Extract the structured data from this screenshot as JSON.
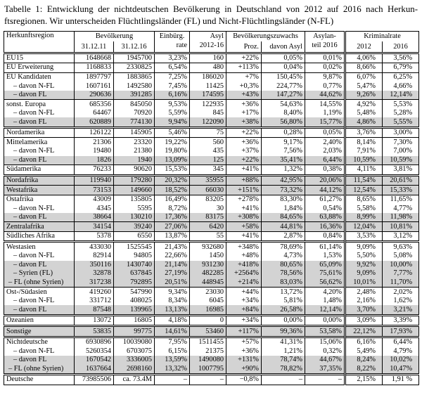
{
  "caption": {
    "line1": "Tabelle 1: Entwicklung der nichtdeutschen Bevölkerung in Deutschland von 2012 auf 2016 nach Herkun-",
    "line2": "ftsregionen. Wir unterscheiden Flüchtlingsländer (FL) und Nicht-Flüchtlingsländer (N-FL)"
  },
  "colors": {
    "shaded_row": "#d3d3d3",
    "border": "#000000",
    "background": "#ffffff"
  },
  "header": {
    "region": "Herkunftsregion",
    "group_bevoelkerung": "Bevölkerung",
    "pop_2011": "31.12.11",
    "pop_2016": "31.12.16",
    "einbuerg_line1": "Einbürg.",
    "einbuerg_line2": "rate",
    "asyl_line1": "Asyl",
    "asyl_line2": "2012-16",
    "group_zuwachs": "Bevölkerungszuwachs",
    "proz": "Proz.",
    "davon_asyl": "davon Asyl",
    "asylanteil_line1": "Asylan-",
    "asylanteil_line2": "teil 2016",
    "group_kriminalrate": "Kriminalrate",
    "krim_2012": "2012",
    "krim_2016": "2016"
  },
  "rows": [
    {
      "region": "EU15",
      "indent": 0,
      "shaded": false,
      "border": "double",
      "values": [
        "1648668",
        "1945700",
        "3,23%",
        "160",
        "+22%",
        "0,05%",
        "0,01%",
        "4,06%",
        "3,56%"
      ]
    },
    {
      "region": "EU Erweiterung",
      "indent": 0,
      "shaded": false,
      "border": "single",
      "values": [
        "1168833",
        "2330825",
        "6,54%",
        "480",
        "+113%",
        "0,04%",
        "0,02%",
        "8,66%",
        "6,79%"
      ]
    },
    {
      "region": "EU Kandidaten",
      "indent": 0,
      "shaded": false,
      "border": "single",
      "values": [
        "1897797",
        "1883865",
        "7,25%",
        "186020",
        "+7%",
        "150,45%",
        "9,87%",
        "6,07%",
        "6,25%"
      ]
    },
    {
      "region": "– davon N-FL",
      "indent": 10,
      "shaded": false,
      "border": "none",
      "values": [
        "1607161",
        "1492580",
        "7,45%",
        "11425",
        "+0,3%",
        "224,77%",
        "0,77%",
        "5,47%",
        "4,66%"
      ]
    },
    {
      "region": "– davon FL",
      "indent": 10,
      "shaded": true,
      "border": "none",
      "values": [
        "290636",
        "391285",
        "6,16%",
        "174595",
        "+43%",
        "147,27%",
        "44,62%",
        "9,26%",
        "12,14%"
      ]
    },
    {
      "region": "sonst. Europa",
      "indent": 0,
      "shaded": false,
      "border": "single",
      "values": [
        "685356",
        "845050",
        "9,53%",
        "122935",
        "+36%",
        "54,63%",
        "14,55%",
        "4,92%",
        "5,53%"
      ]
    },
    {
      "region": "– davon N-FL",
      "indent": 10,
      "shaded": false,
      "border": "none",
      "values": [
        "64467",
        "70920",
        "5,59%",
        "845",
        "+17%",
        "8,40%",
        "1,19%",
        "5,48%",
        "5,28%"
      ]
    },
    {
      "region": "– davon FL",
      "indent": 10,
      "shaded": true,
      "border": "none",
      "values": [
        "620889",
        "774130",
        "9,94%",
        "122090",
        "+38%",
        "56,80%",
        "15,77%",
        "4,86%",
        "5,55%"
      ]
    },
    {
      "region": "Nordamerika",
      "indent": 0,
      "shaded": false,
      "border": "double",
      "values": [
        "126122",
        "145905",
        "5,46%",
        "75",
        "+22%",
        "0,28%",
        "0,05%",
        "3,76%",
        "3,00%"
      ]
    },
    {
      "region": "Mittelamerika",
      "indent": 0,
      "shaded": false,
      "border": "single",
      "values": [
        "21306",
        "23320",
        "19,22%",
        "560",
        "+36%",
        "9,17%",
        "2,40%",
        "8,14%",
        "7,30%"
      ]
    },
    {
      "region": "– davon N-FL",
      "indent": 10,
      "shaded": false,
      "border": "none",
      "values": [
        "19480",
        "21380",
        "19,80%",
        "435",
        "+37%",
        "7,56%",
        "2,03%",
        "7,91%",
        "7,00%"
      ]
    },
    {
      "region": "– davon FL",
      "indent": 10,
      "shaded": true,
      "border": "none",
      "values": [
        "1826",
        "1940",
        "13,09%",
        "125",
        "+22%",
        "35,41%",
        "6,44%",
        "10,59%",
        "10,59%"
      ]
    },
    {
      "region": "Südamerika",
      "indent": 0,
      "shaded": false,
      "border": "single",
      "values": [
        "76233",
        "90620",
        "15,53%",
        "345",
        "+41%",
        "1,32%",
        "0,38%",
        "4,11%",
        "3,81%"
      ]
    },
    {
      "region": "Nordafrika",
      "indent": 0,
      "shaded": true,
      "border": "double",
      "values": [
        "119940",
        "179280",
        "20,32%",
        "35955",
        "+88%",
        "42,95%",
        "20,06%",
        "11,54%",
        "20,61%"
      ]
    },
    {
      "region": "Westafrika",
      "indent": 0,
      "shaded": true,
      "border": "single",
      "values": [
        "73153",
        "149660",
        "18,52%",
        "66030",
        "+151%",
        "73,32%",
        "44,12%",
        "12,54%",
        "15,33%"
      ]
    },
    {
      "region": "Ostafrika",
      "indent": 0,
      "shaded": false,
      "border": "single",
      "values": [
        "43009",
        "135805",
        "16,49%",
        "83205",
        "+278%",
        "83,30%",
        "61,27%",
        "8,65%",
        "11,65%"
      ]
    },
    {
      "region": "– davon N-FL",
      "indent": 10,
      "shaded": false,
      "border": "none",
      "values": [
        "4345",
        "5595",
        "8,72%",
        "30",
        "+41%",
        "1,84%",
        "0,54%",
        "5,58%",
        "4,77%"
      ]
    },
    {
      "region": "– davon FL",
      "indent": 10,
      "shaded": true,
      "border": "none",
      "values": [
        "38664",
        "130210",
        "17,36%",
        "83175",
        "+308%",
        "84,65%",
        "63,88%",
        "8,99%",
        "11,98%"
      ]
    },
    {
      "region": "Zentralafrika",
      "indent": 0,
      "shaded": true,
      "border": "single",
      "values": [
        "34154",
        "39240",
        "27,06%",
        "6420",
        "+58%",
        "44,81%",
        "16,36%",
        "12,04%",
        "10,81%"
      ]
    },
    {
      "region": "Südliches Afrika",
      "indent": 0,
      "shaded": false,
      "border": "single",
      "values": [
        "5378",
        "6550",
        "13,87%",
        "55",
        "+41%",
        "2,87%",
        "0,84%",
        "3,53%",
        "3,12%"
      ]
    },
    {
      "region": "Westasien",
      "indent": 0,
      "shaded": false,
      "border": "double",
      "values": [
        "433030",
        "1525545",
        "21,43%",
        "932680",
        "+348%",
        "78,69%",
        "61,14%",
        "9,09%",
        "9,63%"
      ]
    },
    {
      "region": "– davon N-FL",
      "indent": 10,
      "shaded": false,
      "border": "none",
      "values": [
        "82914",
        "94805",
        "22,66%",
        "1450",
        "+48%",
        "4,73%",
        "1,53%",
        "5,50%",
        "5,08%"
      ]
    },
    {
      "region": "– davon FL",
      "indent": 10,
      "shaded": true,
      "border": "none",
      "values": [
        "350116",
        "1430740",
        "21,14%",
        "931230",
        "+418%",
        "80,65%",
        "65,09%",
        "9,92%",
        "10,00%"
      ]
    },
    {
      "region": "– Syrien (FL)",
      "indent": 10,
      "shaded": true,
      "border": "none",
      "values": [
        "32878",
        "637845",
        "27,19%",
        "482285",
        "+2564%",
        "78,56%",
        "75,61%",
        "9,09%",
        "7,77%"
      ]
    },
    {
      "region": "– FL (ohne Syrien)",
      "indent": 3,
      "shaded": true,
      "border": "none",
      "values": [
        "317238",
        "792895",
        "20,51%",
        "448945",
        "+214%",
        "83,03%",
        "56,62%",
        "10,01%",
        "11,70%"
      ]
    },
    {
      "region": "Ost-/Südasien",
      "indent": 0,
      "shaded": false,
      "border": "single",
      "values": [
        "419260",
        "547990",
        "9,34%",
        "23030",
        "+44%",
        "13,72%",
        "4,20%",
        "2,48%",
        "2,02%"
      ]
    },
    {
      "region": "– davon N-FL",
      "indent": 10,
      "shaded": false,
      "border": "none",
      "values": [
        "331712",
        "408025",
        "8,34%",
        "6045",
        "+34%",
        "5,81%",
        "1,48%",
        "2,16%",
        "1,62%"
      ]
    },
    {
      "region": "– davon FL",
      "indent": 10,
      "shaded": true,
      "border": "none",
      "values": [
        "87548",
        "139965",
        "13,13%",
        "16985",
        "+84%",
        "26,58%",
        "12,14%",
        "3,70%",
        "3,21%"
      ]
    },
    {
      "region": "Ozeanien",
      "indent": 0,
      "shaded": false,
      "border": "double",
      "values": [
        "13072",
        "16805",
        "4,18%",
        "0",
        "+34%",
        "0,00%",
        "0,00%",
        "3,09%",
        "3,39%"
      ]
    },
    {
      "region": "Sonstige",
      "indent": 0,
      "shaded": true,
      "border": "double",
      "values": [
        "53835",
        "99775",
        "14,61%",
        "53460",
        "+117%",
        "99,36%",
        "53,58%",
        "22,12%",
        "17,93%"
      ]
    },
    {
      "region": "Nichtdeutsche",
      "indent": 0,
      "shaded": false,
      "border": "double",
      "values": [
        "6930896",
        "10039080",
        "7,95%",
        "1511455",
        "+57%",
        "41,31%",
        "15,06%",
        "6,16%",
        "6,44%"
      ]
    },
    {
      "region": "– davon N-FL",
      "indent": 10,
      "shaded": false,
      "border": "none",
      "values": [
        "5260354",
        "6703075",
        "6,15%",
        "21375",
        "+36%",
        "1,21%",
        "0,32%",
        "5,49%",
        "4,79%"
      ]
    },
    {
      "region": "– davon FL",
      "indent": 10,
      "shaded": true,
      "border": "none",
      "values": [
        "1670542",
        "3336005",
        "13,59%",
        "1490080",
        "+131%",
        "78,74%",
        "44,67%",
        "8,24%",
        "10,02%"
      ]
    },
    {
      "region": "– FL (ohne Syrien)",
      "indent": 3,
      "shaded": true,
      "border": "none",
      "values": [
        "1637664",
        "2698160",
        "13,32%",
        "1007795",
        "+90%",
        "78,82%",
        "37,35%",
        "8,22%",
        "10,47%"
      ]
    },
    {
      "region": "Deutsche",
      "indent": 0,
      "shaded": false,
      "border": "double",
      "values": [
        "73985506",
        "ca. 73.4M",
        "–",
        "–",
        "−0,8%",
        "–",
        "–",
        "2,15%",
        "1,91 %"
      ]
    }
  ]
}
